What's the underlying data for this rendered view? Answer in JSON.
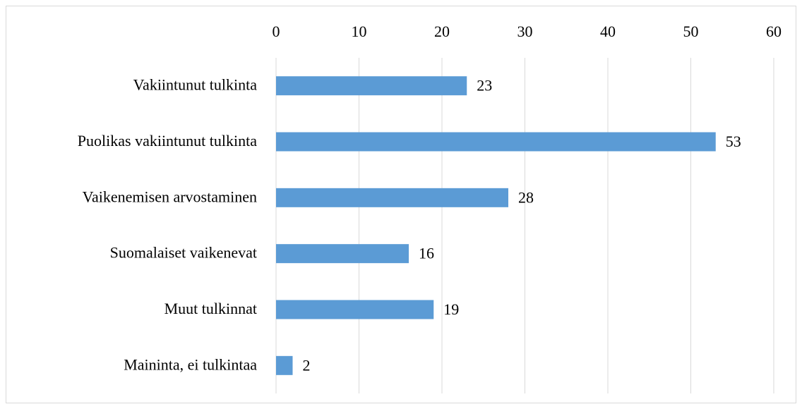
{
  "chart_data": {
    "type": "hbar",
    "categories": [
      "Vakiintunut tulkinta",
      "Puolikas vakiintunut tulkinta",
      "Vaikenemisen arvostaminen",
      "Suomalaiset vaikenevat",
      "Muut tulkinnat",
      "Maininta, ei tulkintaa"
    ],
    "values": [
      23,
      53,
      28,
      16,
      19,
      2
    ],
    "color": "#5b9bd5",
    "xlim": [
      0,
      60
    ],
    "xticks": [
      0,
      10,
      20,
      30,
      40,
      50,
      60
    ],
    "grid": true
  }
}
